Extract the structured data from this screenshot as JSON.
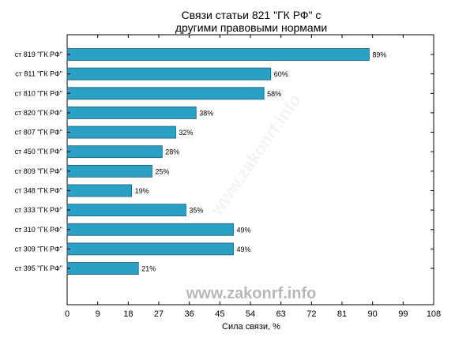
{
  "chart_data": {
    "type": "bar",
    "orientation": "horizontal",
    "title_lines": [
      "Связи статьи 821 \"ГК РФ\" с",
      "другими правовыми нормами"
    ],
    "xlabel": "Сила связи, %",
    "ylabel": "",
    "xlim": [
      0,
      108
    ],
    "xticks": [
      0,
      9,
      18,
      27,
      36,
      45,
      54,
      63,
      72,
      81,
      90,
      99,
      108
    ],
    "categories": [
      "ст 819 \"ГК РФ\"",
      "ст 811 \"ГК РФ\"",
      "ст 810 \"ГК РФ\"",
      "ст 820 \"ГК РФ\"",
      "ст 807 \"ГК РФ\"",
      "ст 450 \"ГК РФ\"",
      "ст 809 \"ГК РФ\"",
      "ст 348 \"ГК РФ\"",
      "ст 333 \"ГК РФ\"",
      "ст 310 \"ГК РФ\"",
      "ст 309 \"ГК РФ\"",
      "ст 395 \"ГК РФ\""
    ],
    "values": [
      89,
      60,
      58,
      38,
      32,
      28,
      25,
      19,
      35,
      49,
      49,
      21
    ],
    "value_labels": [
      "89%",
      "60%",
      "58%",
      "38%",
      "32%",
      "28%",
      "25%",
      "19%",
      "35%",
      "49%",
      "49%",
      "21%"
    ],
    "bar_color": "#2aa0c5",
    "bar_edge_color": "#1d5a70",
    "grid": false,
    "legend": "none"
  },
  "watermark": {
    "text": "www.zakonrf.info",
    "diagonal_text": "www.zakonrf.info"
  }
}
